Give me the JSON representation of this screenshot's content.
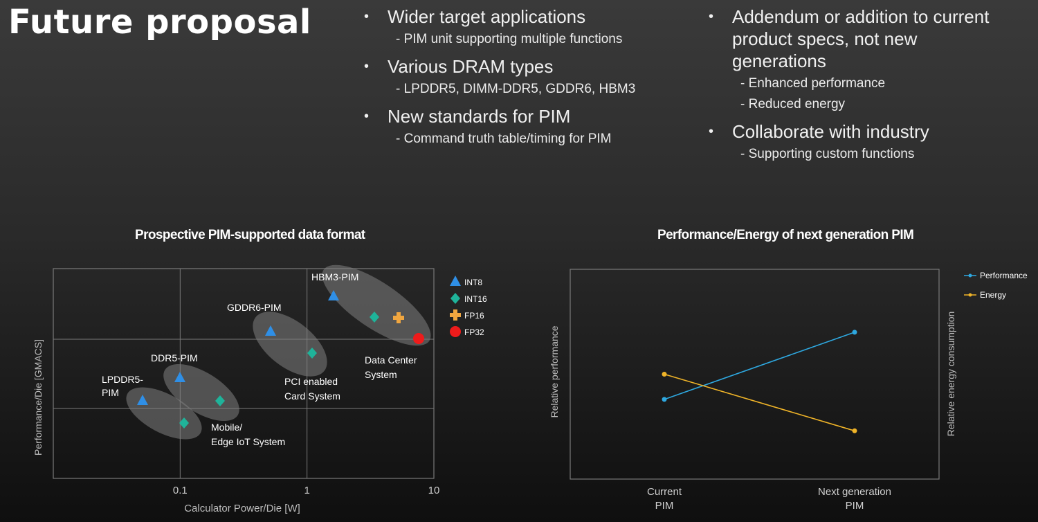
{
  "slide": {
    "title": "Future proposal",
    "col1": [
      {
        "heading": "Wider target applications",
        "subs": [
          "- PIM unit supporting multiple functions"
        ]
      },
      {
        "heading": "Various DRAM types",
        "subs": [
          "- LPDDR5, DIMM-DDR5, GDDR6, HBM3"
        ]
      },
      {
        "heading": "New standards for PIM",
        "subs": [
          "- Command truth table/timing for PIM"
        ]
      }
    ],
    "col2": [
      {
        "heading": "Addendum or addition to current product specs, not new generations",
        "subs": [
          "- Enhanced performance",
          "- Reduced energy"
        ]
      },
      {
        "heading": "Collaborate with industry",
        "subs": [
          "- Supporting custom functions"
        ]
      }
    ],
    "bullet_glyph": "•"
  },
  "chart_data": [
    {
      "type": "scatter",
      "title": "Prospective PIM-supported data format",
      "xlabel": "Calculator Power/Die [W]",
      "ylabel": "Performance/Die [GMACS]",
      "x_scale": "log",
      "xlim": [
        0.01,
        10
      ],
      "x_ticks": [
        "0.1",
        "1",
        "10"
      ],
      "grid": true,
      "legend": [
        {
          "name": "INT8",
          "marker": "triangle",
          "color": "#2f8fe6"
        },
        {
          "name": "INT16",
          "marker": "diamond",
          "color": "#1fb39a"
        },
        {
          "name": "FP16",
          "marker": "plus",
          "color": "#f0a640"
        },
        {
          "name": "FP32",
          "marker": "circle",
          "color": "#ee1b1b"
        }
      ],
      "groups": [
        {
          "label": "LPDDR5-PIM",
          "system": ""
        },
        {
          "label": "DDR5-PIM",
          "system": "Mobile/ Edge IoT System"
        },
        {
          "label": "GDDR6-PIM",
          "system": "PCI enabled Card System"
        },
        {
          "label": "HBM3-PIM",
          "system": "Data Center System"
        }
      ]
    },
    {
      "type": "line",
      "title": "Performance/Energy of next generation PIM",
      "categories": [
        "Current PIM",
        "Next generation PIM"
      ],
      "ylabel_left": "Relative performance",
      "ylabel_right": "Relative energy consumption",
      "series": [
        {
          "name": "Performance",
          "color": "#2ea8e0",
          "values": [
            0.38,
            0.7
          ]
        },
        {
          "name": "Energy",
          "color": "#f0b428",
          "values": [
            0.5,
            0.23
          ]
        }
      ],
      "ylim": [
        0,
        1
      ],
      "legend": "top-right"
    }
  ]
}
